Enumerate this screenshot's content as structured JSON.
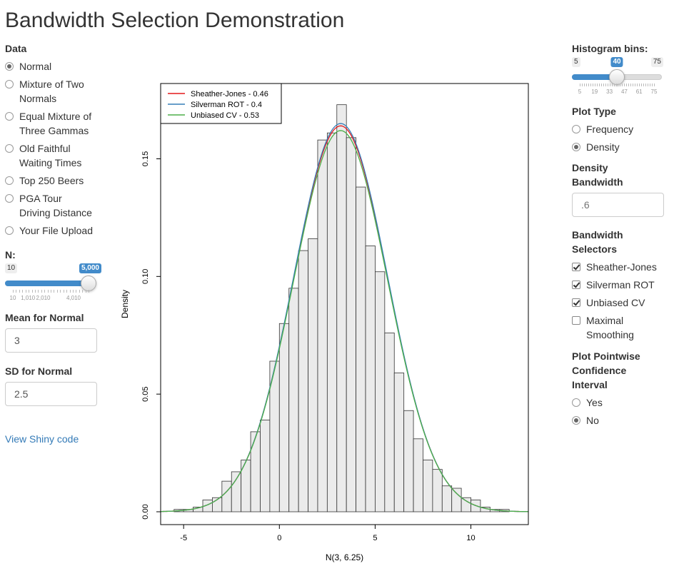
{
  "title": "Bandwidth Selection Demonstration",
  "data_input": {
    "label": "Data",
    "selected": 0,
    "options": [
      [
        "Normal"
      ],
      [
        "Mixture of Two",
        "Normals"
      ],
      [
        "Equal Mixture of",
        "Three Gammas"
      ],
      [
        "Old Faithful",
        "Waiting Times"
      ],
      [
        "Top 250 Beers"
      ],
      [
        "PGA Tour",
        "Driving Distance"
      ],
      [
        "Your File Upload"
      ]
    ]
  },
  "n_slider": {
    "label": "N:",
    "min_label": "10",
    "value_label": "5,000",
    "value": 5000,
    "min": 10,
    "max": 5000,
    "tick_labels": [
      "10",
      "1,010",
      "2,010",
      "4,010"
    ],
    "tick_values": [
      10,
      1010,
      2010,
      4010
    ]
  },
  "mean_input": {
    "label": "Mean for Normal",
    "value": "3"
  },
  "sd_input": {
    "label": "SD for Normal",
    "value": "2.5"
  },
  "shiny_link": "View Shiny code",
  "bins_slider": {
    "label": "Histogram bins:",
    "min_label": "5",
    "max_label": "75",
    "value_label": "40",
    "value": 40,
    "min": 5,
    "max": 75,
    "tick_labels": [
      "5",
      "19",
      "33",
      "47",
      "61",
      "75"
    ],
    "tick_values": [
      5,
      19,
      33,
      47,
      61,
      75
    ]
  },
  "plot_type": {
    "label": "Plot Type",
    "selected": 1,
    "options": [
      "Frequency",
      "Density"
    ]
  },
  "density_bandwidth": {
    "label_lines": [
      "Density",
      "Bandwidth"
    ],
    "placeholder": ".6"
  },
  "bandwidth_selectors": {
    "label_lines": [
      "Bandwidth",
      "Selectors"
    ],
    "options": [
      {
        "lines": [
          "Sheather-Jones"
        ],
        "checked": true
      },
      {
        "lines": [
          "Silverman ROT"
        ],
        "checked": true
      },
      {
        "lines": [
          "Unbiased CV"
        ],
        "checked": true
      },
      {
        "lines": [
          "Maximal",
          "Smoothing"
        ],
        "checked": false
      }
    ]
  },
  "pointwise_ci": {
    "label_lines": [
      "Plot Pointwise",
      "Confidence",
      "Interval"
    ],
    "selected": 1,
    "options": [
      "Yes",
      "No"
    ]
  },
  "chart_data": {
    "type": "histogram",
    "xlabel": "N(3, 6.25)",
    "ylabel": "Density",
    "xlim": [
      -6.2,
      13
    ],
    "ylim": [
      0,
      0.182
    ],
    "xticks": [
      -5,
      0,
      5,
      10
    ],
    "xtick_labels": [
      "-5",
      "0",
      "5",
      "10"
    ],
    "yticks": [
      0,
      0.05,
      0.1,
      0.15
    ],
    "ytick_labels": [
      "0.00",
      "0.05",
      "0.10",
      "0.15"
    ],
    "bin_width": 0.5,
    "bins": [
      {
        "x0": -5.5,
        "v": 0.001
      },
      {
        "x0": -5.0,
        "v": 0.001
      },
      {
        "x0": -4.5,
        "v": 0.002
      },
      {
        "x0": -4.0,
        "v": 0.005
      },
      {
        "x0": -3.5,
        "v": 0.006
      },
      {
        "x0": -3.0,
        "v": 0.013
      },
      {
        "x0": -2.5,
        "v": 0.017
      },
      {
        "x0": -2.0,
        "v": 0.022
      },
      {
        "x0": -1.5,
        "v": 0.034
      },
      {
        "x0": -1.0,
        "v": 0.039
      },
      {
        "x0": -0.5,
        "v": 0.064
      },
      {
        "x0": 0.0,
        "v": 0.08
      },
      {
        "x0": 0.5,
        "v": 0.095
      },
      {
        "x0": 1.0,
        "v": 0.111
      },
      {
        "x0": 1.5,
        "v": 0.116
      },
      {
        "x0": 2.0,
        "v": 0.158
      },
      {
        "x0": 2.5,
        "v": 0.161
      },
      {
        "x0": 3.0,
        "v": 0.173
      },
      {
        "x0": 3.5,
        "v": 0.159
      },
      {
        "x0": 4.0,
        "v": 0.138
      },
      {
        "x0": 4.5,
        "v": 0.113
      },
      {
        "x0": 5.0,
        "v": 0.102
      },
      {
        "x0": 5.5,
        "v": 0.076
      },
      {
        "x0": 6.0,
        "v": 0.059
      },
      {
        "x0": 6.5,
        "v": 0.043
      },
      {
        "x0": 7.0,
        "v": 0.031
      },
      {
        "x0": 7.5,
        "v": 0.022
      },
      {
        "x0": 8.0,
        "v": 0.018
      },
      {
        "x0": 8.5,
        "v": 0.011
      },
      {
        "x0": 9.0,
        "v": 0.01
      },
      {
        "x0": 9.5,
        "v": 0.006
      },
      {
        "x0": 10.0,
        "v": 0.005
      },
      {
        "x0": 10.5,
        "v": 0.002
      },
      {
        "x0": 11.0,
        "v": 0.001
      },
      {
        "x0": 11.5,
        "v": 0.001
      }
    ],
    "series": [
      {
        "name": "Sheather-Jones - 0.46",
        "color": "#e41a1c",
        "bandwidth": 0.46,
        "peak": 0.164
      },
      {
        "name": "Silverman ROT - 0.4",
        "color": "#377eb8",
        "bandwidth": 0.4,
        "peak": 0.165
      },
      {
        "name": "Unbiased CV - 0.53",
        "color": "#4daf4a",
        "bandwidth": 0.53,
        "peak": 0.162
      }
    ],
    "curve_mean": 3.2,
    "curve_sd": 2.45,
    "legend_position": "top-left"
  }
}
